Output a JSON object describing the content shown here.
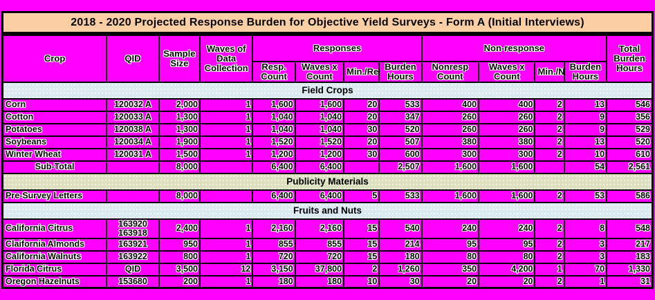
{
  "title": "2018 - 2020 Projected Response Burden for Objective Yield Surveys - Form A (Initial Interviews)",
  "colors": {
    "background_magenta": "#FF00FF",
    "title_bar_peach": "#FBCEA3",
    "section_band_blue": "#DBE9F1",
    "section_band_olive": "#DCE0BE",
    "border_black": "#000000"
  },
  "table": {
    "header": {
      "crop": "Crop",
      "qid": "QID",
      "sample_size": "Sample Size",
      "waves": "Waves of Data Collection",
      "responses_group": "Responses",
      "nonresponse_group": "Non-response",
      "total": "Total Burden Hours",
      "responses_sub": [
        "Resp. Count",
        "Waves x Count",
        "Min./Resp.",
        "Burden Hours"
      ],
      "nonresponse_sub": [
        "Nonresp Count",
        "Waves x Count",
        "Min./Nonr.",
        "Burden Hours"
      ]
    },
    "column_keys": [
      "crop",
      "qid",
      "sample-size",
      "waves-of-data-collection",
      "resp-count",
      "resp-waves-x-count",
      "min-per-resp",
      "resp-burden-hours",
      "nonresp-count",
      "nonresp-waves-x-count",
      "min-per-nonr",
      "nonresp-burden-hours",
      "total-burden-hours"
    ],
    "sections": [
      {
        "label": "Field Crops",
        "band": "blue",
        "rows": [
          {
            "cells": [
              "Corn",
              "120032 A",
              "2,000",
              "1",
              "1,600",
              "1,600",
              "20",
              "533",
              "400",
              "400",
              "2",
              "13",
              "546"
            ]
          },
          {
            "cells": [
              "Cotton",
              "120033 A",
              "1,300",
              "1",
              "1,040",
              "1,040",
              "20",
              "347",
              "260",
              "260",
              "2",
              "9",
              "356"
            ]
          },
          {
            "cells": [
              "Potatoes",
              "120038 A",
              "1,300",
              "1",
              "1,040",
              "1,040",
              "30",
              "520",
              "260",
              "260",
              "2",
              "9",
              "529"
            ]
          },
          {
            "cells": [
              "Soybeans",
              "120034 A",
              "1,900",
              "1",
              "1,520",
              "1,520",
              "20",
              "507",
              "380",
              "380",
              "2",
              "13",
              "520"
            ]
          },
          {
            "cells": [
              "Winter Wheat",
              "120031 A",
              "1,500",
              "1",
              "1,200",
              "1,200",
              "30",
              "600",
              "300",
              "300",
              "2",
              "10",
              "610"
            ]
          },
          {
            "subtotal": true,
            "cells": [
              "Sub-Total",
              "",
              "8,000",
              "",
              "6,400",
              "6,400",
              "",
              "2,507",
              "1,600",
              "1,600",
              "",
              "54",
              "2,561"
            ]
          }
        ]
      },
      {
        "label": "Publicity Materials",
        "band": "olive",
        "rows": [
          {
            "cells": [
              "Pre-Survey Letters",
              "",
              "8,000",
              "",
              "6,400",
              "6,400",
              "5",
              "533",
              "1,600",
              "1,600",
              "2",
              "53",
              "586"
            ]
          }
        ]
      },
      {
        "label": "Fruits and Nuts",
        "band": "blue",
        "rows": [
          {
            "cells": [
              "California Citrus",
              "163920\n163918",
              "2,400",
              "1",
              "2,160",
              "2,160",
              "15",
              "540",
              "240",
              "240",
              "2",
              "8",
              "548"
            ]
          },
          {
            "cells": [
              "Claifornia Almonds",
              "163921",
              "950",
              "1",
              "855",
              "855",
              "15",
              "214",
              "95",
              "95",
              "2",
              "3",
              "217"
            ]
          },
          {
            "cells": [
              "California Walnuts",
              "163922",
              "800",
              "1",
              "720",
              "720",
              "15",
              "180",
              "80",
              "80",
              "2",
              "3",
              "183"
            ]
          },
          {
            "cells": [
              "Florida Citrus",
              "QID",
              "3,500",
              "12",
              "3,150",
              "37,800",
              "2",
              "1,260",
              "350",
              "4,200",
              "1",
              "70",
              "1,330"
            ]
          },
          {
            "cells": [
              "Oregon Hazelnuts",
              "153680",
              "200",
              "1",
              "180",
              "180",
              "10",
              "30",
              "20",
              "20",
              "2",
              "1",
              "31"
            ]
          }
        ]
      }
    ]
  }
}
